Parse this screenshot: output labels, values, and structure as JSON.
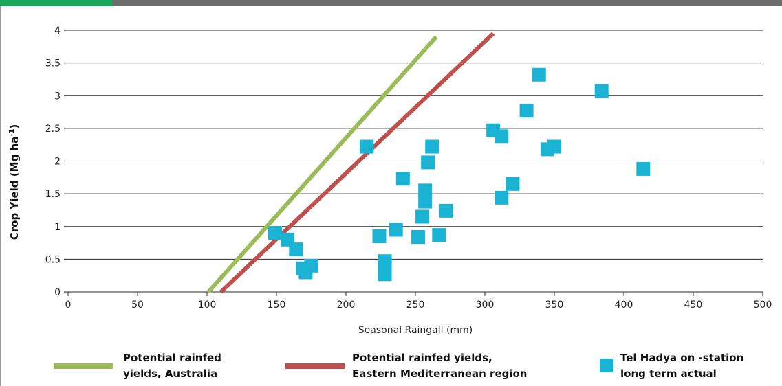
{
  "chart_data": {
    "type": "scatter",
    "ylabel_main": "Crop Yield (Mg ha",
    "ylabel_sup": "-1",
    "ylabel_close": ")",
    "xlabel": "Seasonal Raingall (mm)",
    "xlim": [
      0,
      500
    ],
    "ylim": [
      0,
      4
    ],
    "x_ticks": [
      "0",
      "50",
      "100",
      "150",
      "200",
      "250",
      "300",
      "350",
      "400",
      "450",
      "500"
    ],
    "y_ticks": [
      "0",
      "0.5",
      "1",
      "1.5",
      "2",
      "2.5",
      "3",
      "3.5",
      "4"
    ],
    "grid": "horizontal",
    "lines": [
      {
        "name_line1": "Potential rainfed",
        "name_line2": "yields, Australia",
        "color": "#9bbb59",
        "points": [
          [
            101,
            0
          ],
          [
            265,
            3.9
          ]
        ]
      },
      {
        "name_line1": "Potential rainfed yields,",
        "name_line2": "Eastern Mediterranean region",
        "color": "#c0504d",
        "points": [
          [
            110,
            0
          ],
          [
            306,
            3.95
          ]
        ]
      }
    ],
    "scatter": {
      "name_line1": "Tel Hadya on -station",
      "name_line2": "long term actual",
      "color": "#1ab3d4",
      "points": [
        [
          149,
          0.9
        ],
        [
          158,
          0.8
        ],
        [
          164,
          0.65
        ],
        [
          169,
          0.36
        ],
        [
          171,
          0.3
        ],
        [
          175,
          0.4
        ],
        [
          215,
          2.22
        ],
        [
          224,
          0.85
        ],
        [
          228,
          0.47
        ],
        [
          228,
          0.27
        ],
        [
          236,
          0.95
        ],
        [
          241,
          1.73
        ],
        [
          252,
          0.84
        ],
        [
          255,
          1.15
        ],
        [
          257,
          1.55
        ],
        [
          257,
          1.38
        ],
        [
          259,
          1.98
        ],
        [
          262,
          2.22
        ],
        [
          267,
          0.87
        ],
        [
          272,
          1.24
        ],
        [
          306,
          2.47
        ],
        [
          312,
          2.38
        ],
        [
          312,
          1.44
        ],
        [
          320,
          1.65
        ],
        [
          330,
          2.77
        ],
        [
          339,
          3.32
        ],
        [
          345,
          2.18
        ],
        [
          350,
          2.22
        ],
        [
          384,
          3.07
        ],
        [
          414,
          1.88
        ]
      ]
    }
  }
}
